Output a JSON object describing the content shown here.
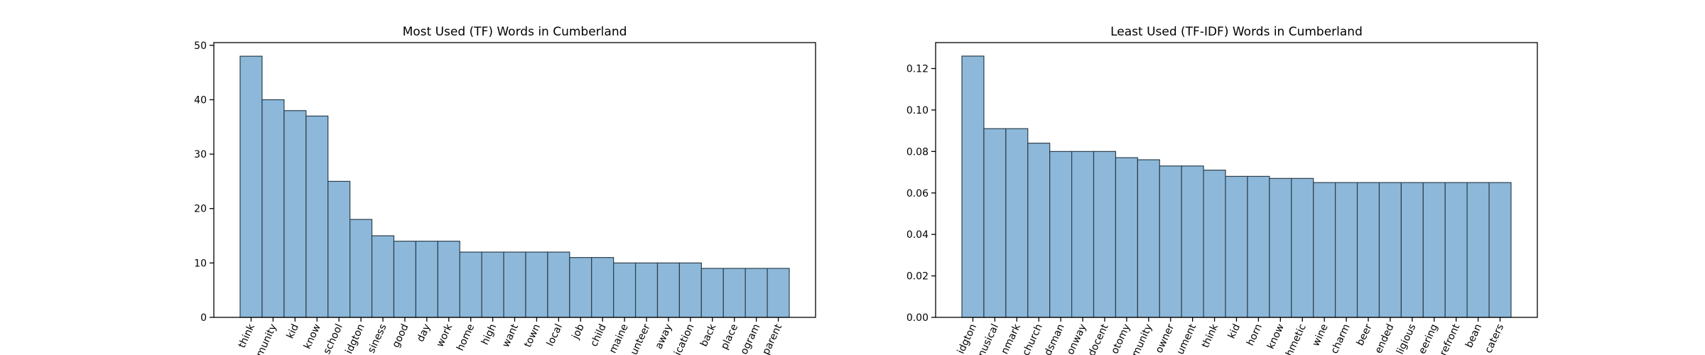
{
  "chart_data": [
    {
      "type": "bar",
      "title": "Most Used (TF) Words in Cumberland",
      "xlabel": "",
      "ylabel": "",
      "ylim": [
        0,
        50.5
      ],
      "yticks": [
        0,
        10,
        20,
        30,
        40,
        50
      ],
      "ytick_labels": [
        "0",
        "10",
        "20",
        "30",
        "40",
        "50"
      ],
      "grid": false,
      "bar_color": "#8db8d9",
      "edge_color": "#2b3f4e",
      "categories": [
        "think",
        "munity",
        "kid",
        "know",
        "school",
        "idgton",
        "siness",
        "good",
        "day",
        "work",
        "home",
        "high",
        "want",
        "town",
        "local",
        "job",
        "child",
        "maine",
        "unteer",
        "away",
        "ication",
        "back",
        "place",
        "ogram",
        "parent"
      ],
      "values": [
        48,
        40,
        38,
        37,
        25,
        18,
        15,
        14,
        14,
        14,
        12,
        12,
        12,
        12,
        12,
        11,
        11,
        10,
        10,
        10,
        10,
        9,
        9,
        9,
        9
      ]
    },
    {
      "type": "bar",
      "title": "Least Used (TF-IDF) Words in Cumberland",
      "xlabel": "",
      "ylabel": "",
      "ylim": [
        0,
        0.1325
      ],
      "yticks": [
        0,
        0.02,
        0.04,
        0.06,
        0.08,
        0.1,
        0.12
      ],
      "ytick_labels": [
        "0.00",
        "0.02",
        "0.04",
        "0.06",
        "0.08",
        "0.10",
        "0.12"
      ],
      "grid": false,
      "bar_color": "#8db8d9",
      "edge_color": "#2b3f4e",
      "categories": [
        "idgton",
        "nusical",
        "nmark",
        "church",
        "dsman",
        "onway",
        "docent",
        "otomy",
        "munity",
        "owner",
        "ument",
        "think",
        "kid",
        "horn",
        "know",
        "hmetic",
        "wine",
        "charm",
        "beer",
        "ended",
        "ligious",
        "eering",
        "refront",
        "bean",
        "caters"
      ],
      "values": [
        0.126,
        0.091,
        0.091,
        0.084,
        0.08,
        0.08,
        0.08,
        0.077,
        0.076,
        0.073,
        0.073,
        0.071,
        0.068,
        0.068,
        0.067,
        0.067,
        0.065,
        0.065,
        0.065,
        0.065,
        0.065,
        0.065,
        0.065,
        0.065,
        0.065
      ]
    }
  ]
}
